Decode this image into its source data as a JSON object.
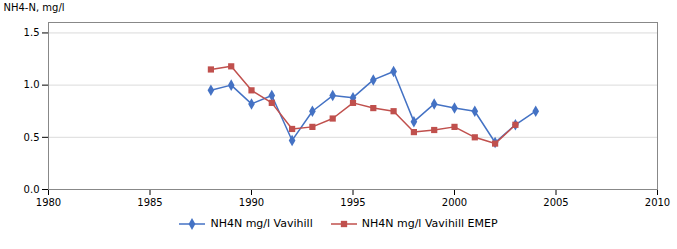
{
  "chart_data": {
    "type": "line",
    "x": [
      1988,
      1989,
      1990,
      1991,
      1992,
      1993,
      1994,
      1995,
      1996,
      1997,
      1998,
      1999,
      2000,
      2001,
      2002,
      2003,
      2004
    ],
    "series": [
      {
        "name": "NH4N mg/l Vavihill",
        "color": "#4472C4",
        "marker": "diamond",
        "values": [
          0.95,
          1.0,
          0.82,
          0.9,
          0.47,
          0.75,
          0.9,
          0.88,
          1.05,
          1.13,
          0.65,
          0.82,
          0.78,
          0.75,
          0.45,
          0.62,
          0.75
        ]
      },
      {
        "name": "NH4N mg/l Vavihill EMEP",
        "color": "#C0504D",
        "marker": "square",
        "values": [
          1.15,
          1.18,
          0.95,
          0.83,
          0.58,
          0.6,
          0.68,
          0.83,
          0.78,
          0.75,
          0.55,
          0.57,
          0.6,
          0.5,
          0.44,
          0.62,
          null
        ]
      }
    ],
    "ylabel": "NH4-N, mg/l",
    "xlim": [
      1980,
      2010
    ],
    "xticks": [
      1980,
      1985,
      1990,
      1995,
      2000,
      2005,
      2010
    ],
    "ylim": [
      0,
      1.6
    ],
    "yticks": [
      {
        "value": 0,
        "label": "0.0"
      },
      0.5,
      {
        "value": 1.0,
        "label": "1.0"
      },
      1.5
    ],
    "grid": true,
    "legend": "bottom"
  }
}
